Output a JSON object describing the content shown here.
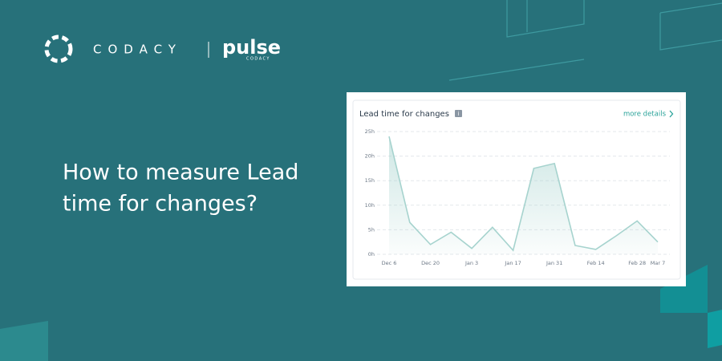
{
  "brand": {
    "name": "CODACY",
    "product": "pulse",
    "product_sub": "CODACY"
  },
  "headline": [
    "How to measure Lead",
    "time for changes?"
  ],
  "chart_data": {
    "type": "line",
    "title": "Lead time for changes",
    "info": "i",
    "link": "more details",
    "categories": [
      "Dec 6",
      null,
      "Dec 20",
      null,
      "Jan 3",
      null,
      "Jan 17",
      null,
      "Jan 31",
      null,
      "Feb 14",
      null,
      "Feb 28",
      "Mar 7"
    ],
    "values": [
      24,
      6.5,
      2,
      4.5,
      1.2,
      5.5,
      0.8,
      17.5,
      18.5,
      1.8,
      1,
      3.8,
      6.8,
      2.5
    ],
    "color": "#a6d3ce",
    "ylim": [
      0,
      25
    ],
    "yticks": [
      {
        "value": 0,
        "label": "0h"
      },
      {
        "value": 5,
        "label": "5h"
      },
      {
        "value": 10,
        "label": "10h"
      },
      {
        "value": 15,
        "label": "15h"
      },
      {
        "value": 20,
        "label": "20h"
      },
      {
        "value": 25,
        "label": "25h"
      }
    ],
    "grid": true
  }
}
